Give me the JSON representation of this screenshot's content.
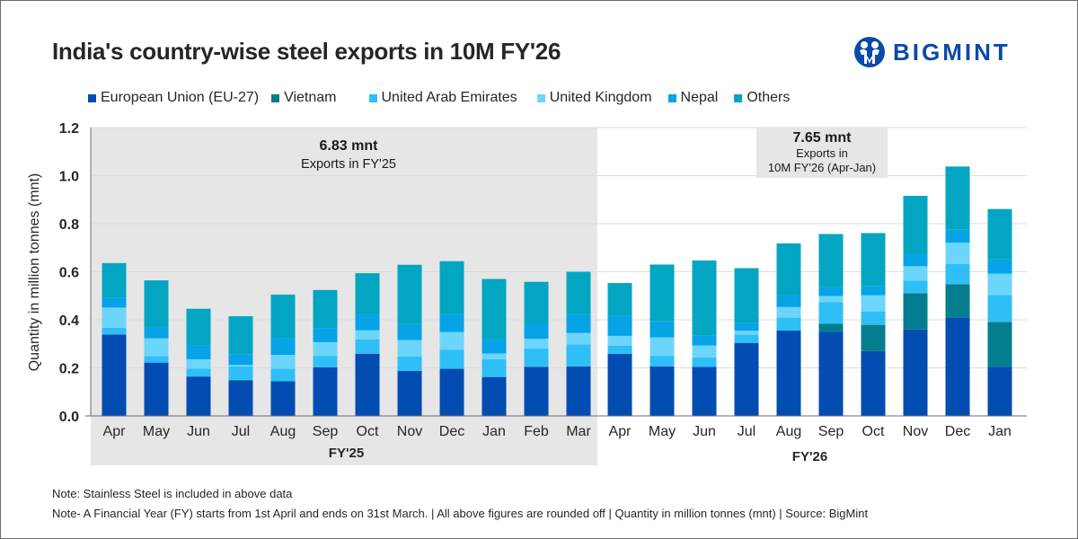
{
  "header": {
    "title": "India's country-wise steel exports in 10M FY'26",
    "brand": "BIGMINT"
  },
  "legend": [
    {
      "label": "European Union (EU-27)",
      "color": "#034db2"
    },
    {
      "label": "Vietnam",
      "color": "#047d8f"
    },
    {
      "label": "United Arab Emirates",
      "color": "#2fbff6"
    },
    {
      "label": "United Kingdom",
      "color": "#6cd5fc"
    },
    {
      "label": "Nepal",
      "color": "#06a3e6"
    },
    {
      "label": "Others",
      "color": "#03a6c2"
    }
  ],
  "annotations": {
    "fy25": {
      "value": "6.83 mnt",
      "line1": "Exports in FY'25"
    },
    "fy26": {
      "value": "7.65 mnt",
      "line1": "Exports in",
      "line2": "10M FY'26 (Apr-Jan)"
    }
  },
  "notes": [
    "Note: Stainless Steel is included in above data",
    "Note- A Financial Year (FY) starts from 1st April and ends on 31st March. | All above figures are rounded off  | Quantity in million tonnes (mnt) | Source: BigMint"
  ],
  "chart_data": {
    "type": "bar",
    "stacked": true,
    "title": "India's country-wise steel exports in 10M FY'26",
    "xlabel": "",
    "ylabel": "Quantity in million tonnes (mnt)",
    "ylim": [
      0,
      1.2
    ],
    "yticks": [
      "0.0",
      "0.2",
      "0.4",
      "0.6",
      "0.8",
      "1.0",
      "1.2"
    ],
    "grid": true,
    "legend_position": "top",
    "categories": [
      "Apr",
      "May",
      "Jun",
      "Jul",
      "Aug",
      "Sep",
      "Oct",
      "Nov",
      "Dec",
      "Jan",
      "Feb",
      "Mar",
      "Apr",
      "May",
      "Jun",
      "Jul",
      "Aug",
      "Sep",
      "Oct",
      "Nov",
      "Dec",
      "Jan"
    ],
    "groups": [
      {
        "label": "FY'25",
        "start": 0,
        "end": 11,
        "shaded": true
      },
      {
        "label": "FY'26",
        "start": 12,
        "end": 21,
        "shaded": false
      }
    ],
    "series": [
      {
        "name": "European Union (EU-27)",
        "values": [
          0.339,
          0.222,
          0.164,
          0.146,
          0.144,
          0.202,
          0.259,
          0.187,
          0.196,
          0.162,
          0.204,
          0.206,
          0.258,
          0.206,
          0.204,
          0.304,
          0.355,
          0.351,
          0.27,
          0.36,
          0.409,
          0.204
        ]
      },
      {
        "name": "Vietnam",
        "values": [
          0,
          0,
          0,
          0.004,
          0,
          0,
          0,
          0,
          0,
          0,
          0,
          0,
          0,
          0,
          0,
          0,
          0,
          0.033,
          0.109,
          0.151,
          0.139,
          0.187
        ]
      },
      {
        "name": "United Arab Emirates",
        "values": [
          0.028,
          0.027,
          0.033,
          0.056,
          0.052,
          0.048,
          0.059,
          0.061,
          0.079,
          0.074,
          0.076,
          0.092,
          0.035,
          0.044,
          0.04,
          0.035,
          0.054,
          0.089,
          0.056,
          0.052,
          0.085,
          0.112
        ]
      },
      {
        "name": "United Kingdom",
        "values": [
          0.084,
          0.074,
          0.039,
          0.006,
          0.058,
          0.057,
          0.039,
          0.068,
          0.074,
          0.024,
          0.041,
          0.047,
          0.04,
          0.077,
          0.049,
          0.016,
          0.044,
          0.026,
          0.067,
          0.06,
          0.088,
          0.089
        ]
      },
      {
        "name": "Nepal",
        "values": [
          0.042,
          0.047,
          0.059,
          0.043,
          0.071,
          0.059,
          0.069,
          0.066,
          0.075,
          0.058,
          0.064,
          0.079,
          0.084,
          0.068,
          0.043,
          0.031,
          0.05,
          0.036,
          0.039,
          0.05,
          0.054,
          0.06
        ]
      },
      {
        "name": "Others",
        "values": [
          0.143,
          0.194,
          0.151,
          0.16,
          0.18,
          0.158,
          0.168,
          0.247,
          0.22,
          0.252,
          0.173,
          0.176,
          0.136,
          0.235,
          0.311,
          0.229,
          0.215,
          0.222,
          0.22,
          0.243,
          0.263,
          0.209
        ]
      }
    ]
  }
}
